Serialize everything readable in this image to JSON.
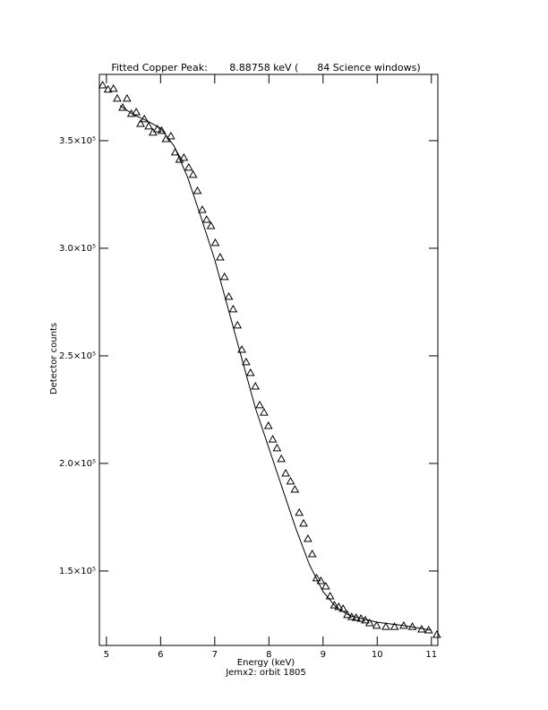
{
  "chart_data": {
    "type": "scatter",
    "title": "Fitted Copper Peak:       8.88758 keV (      84 Science windows)",
    "xlabel": "Energy (keV)",
    "ylabel": "Detector counts",
    "subtitle": "Jemx2: orbit 1805",
    "xlim": [
      4.87,
      11.12
    ],
    "ylim": [
      115400,
      380800
    ],
    "xticks": [
      5,
      6,
      7,
      8,
      9,
      10,
      11
    ],
    "yticks": [
      {
        "value": 150000,
        "label": "1.5×10⁵"
      },
      {
        "value": 200000,
        "label": "2.0×10⁵"
      },
      {
        "value": 250000,
        "label": "2.5×10⁵"
      },
      {
        "value": 300000,
        "label": "3.0×10⁵"
      },
      {
        "value": 350000,
        "label": "3.5×10⁵"
      }
    ],
    "series": [
      {
        "type": "scatter",
        "color": "#000000",
        "marker": "triangle",
        "x": [
          4.93,
          5.03,
          5.13,
          5.2,
          5.3,
          5.38,
          5.46,
          5.55,
          5.63,
          5.7,
          5.78,
          5.86,
          5.94,
          6.02,
          6.1,
          6.19,
          6.27,
          6.35,
          6.43,
          6.52,
          6.6,
          6.68,
          6.77,
          6.85,
          6.93,
          7.01,
          7.1,
          7.18,
          7.26,
          7.34,
          7.42,
          7.5,
          7.58,
          7.66,
          7.75,
          7.83,
          7.91,
          7.99,
          8.07,
          8.15,
          8.23,
          8.31,
          8.4,
          8.48,
          8.56,
          8.64,
          8.72,
          8.8,
          8.88,
          8.96,
          9.05,
          9.13,
          9.21,
          9.29,
          9.37,
          9.45,
          9.53,
          9.61,
          9.7,
          9.78,
          9.86,
          9.99,
          10.16,
          10.32,
          10.49,
          10.65,
          10.82,
          10.95,
          11.1
        ],
        "values": [
          375800,
          373800,
          374200,
          369600,
          365400,
          369600,
          362500,
          363300,
          357900,
          360000,
          356700,
          353800,
          355400,
          354600,
          350800,
          352100,
          344600,
          341200,
          342100,
          337500,
          334200,
          326700,
          317900,
          313300,
          310400,
          302500,
          295800,
          286700,
          277500,
          271700,
          264200,
          252900,
          247100,
          242100,
          235800,
          227100,
          223700,
          217500,
          211200,
          207100,
          202100,
          195400,
          191700,
          187900,
          177100,
          172100,
          165000,
          157900,
          146700,
          145400,
          142900,
          138300,
          134100,
          133300,
          132500,
          129600,
          128700,
          128300,
          127900,
          127100,
          125800,
          124600,
          124100,
          124100,
          124600,
          124100,
          122900,
          122500,
          120400
        ]
      },
      {
        "type": "line",
        "color": "#000000",
        "x": [
          5.25,
          5.5,
          5.75,
          6.0,
          6.25,
          6.5,
          6.75,
          7.0,
          7.25,
          7.5,
          7.75,
          8.0,
          8.25,
          8.5,
          8.75,
          9.0,
          9.25,
          9.5,
          10.0,
          10.5,
          11.0
        ],
        "values": [
          366300,
          362100,
          359200,
          355800,
          347500,
          332900,
          314200,
          294600,
          271700,
          248700,
          225800,
          207100,
          188300,
          169600,
          152900,
          140400,
          132900,
          129200,
          126200,
          124600,
          122500
        ]
      }
    ]
  }
}
